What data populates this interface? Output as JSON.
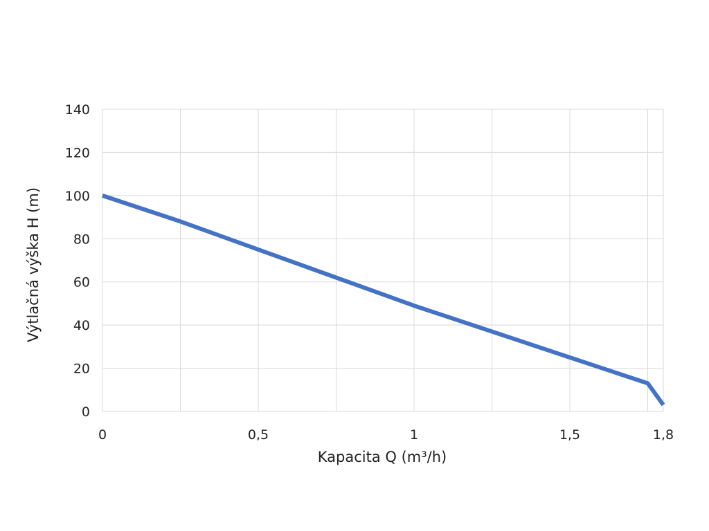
{
  "chart_data": {
    "type": "line",
    "title": "",
    "xlabel": "Kapacita Q (m³/h)",
    "ylabel": "Výtlačná výška H (m)",
    "xlim": [
      0,
      1.8
    ],
    "ylim": [
      0,
      140
    ],
    "x_ticks": [
      0,
      0.5,
      1,
      1.5,
      1.8
    ],
    "x_tick_labels": [
      "0",
      "0,5",
      "1",
      "1,5",
      "1,8"
    ],
    "x_grid": [
      0,
      0.25,
      0.5,
      0.75,
      1,
      1.25,
      1.5,
      1.75,
      1.8
    ],
    "y_ticks": [
      0,
      20,
      40,
      60,
      80,
      100,
      120,
      140
    ],
    "y_tick_labels": [
      "0",
      "20",
      "40",
      "60",
      "80",
      "100",
      "120",
      "140"
    ],
    "grid": true,
    "legend": "none",
    "series": [
      {
        "color": "#4472c4",
        "x": [
          0,
          0.25,
          0.5,
          0.75,
          1,
          1.25,
          1.5,
          1.75,
          1.8
        ],
        "y": [
          100,
          88,
          75,
          62,
          49,
          37,
          25,
          13,
          3
        ]
      }
    ]
  }
}
